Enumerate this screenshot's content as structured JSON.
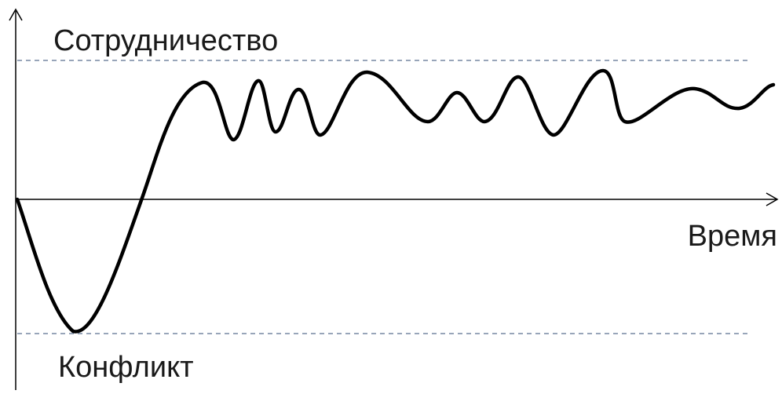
{
  "labels": {
    "top_level": "Сотрудничество",
    "bottom_level": "Конфликт",
    "x_axis": "Время"
  },
  "colors": {
    "text": "#1a1a1a",
    "curve": "#000000",
    "axis": "#000000",
    "guide_dashed": "#5b6f8f"
  }
}
